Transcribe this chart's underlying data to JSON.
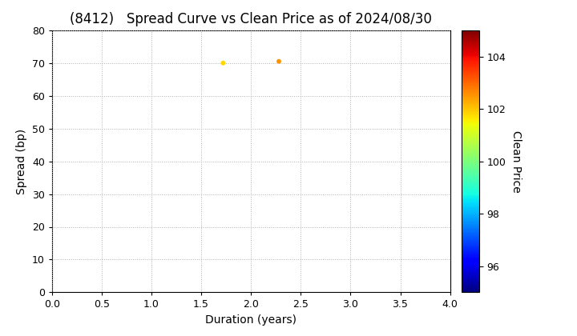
{
  "title": "(8412)   Spread Curve vs Clean Price as of 2024/08/30",
  "xlabel": "Duration (years)",
  "ylabel": "Spread (bp)",
  "xlim": [
    0.0,
    4.0
  ],
  "ylim": [
    0,
    80
  ],
  "xticks": [
    0.0,
    0.5,
    1.0,
    1.5,
    2.0,
    2.5,
    3.0,
    3.5,
    4.0
  ],
  "yticks": [
    0,
    10,
    20,
    30,
    40,
    50,
    60,
    70,
    80
  ],
  "colorbar_label": "Clean Price",
  "colorbar_vmin": 95,
  "colorbar_vmax": 105,
  "colorbar_ticks": [
    96,
    98,
    100,
    102,
    104
  ],
  "data_points": [
    {
      "duration": 1.72,
      "spread": 70,
      "price": 101.8
    },
    {
      "duration": 2.28,
      "spread": 70.5,
      "price": 102.5
    }
  ],
  "marker_size": 18,
  "background_color": "#ffffff",
  "grid_color": "#b0b0b0",
  "grid_style": ":",
  "title_fontsize": 12,
  "title_fontweight": "normal",
  "axis_fontsize": 10,
  "tick_fontsize": 9
}
